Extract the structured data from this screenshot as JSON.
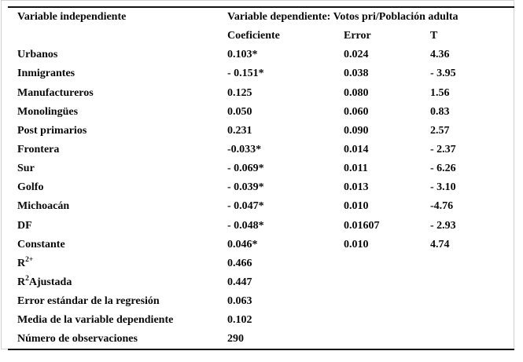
{
  "table": {
    "header": {
      "independent_label": "Variable independiente",
      "dependent_label": "Variable dependiente: Votos pri/Población adulta",
      "columns": {
        "coefficient": "Coeficiente",
        "error": "Error",
        "t": "T"
      }
    },
    "rows": [
      {
        "label": "Urbanos",
        "label_sup": "",
        "label_rest": "",
        "coef": "0.103*",
        "error": "0.024",
        "t": "4.36"
      },
      {
        "label": "Inmigrantes",
        "label_sup": "",
        "label_rest": "",
        "coef": "- 0.151*",
        "error": "0.038",
        "t": "- 3.95"
      },
      {
        "label": "Manufactureros",
        "label_sup": "",
        "label_rest": "",
        "coef": "0.125",
        "error": "0.080",
        "t": "1.56"
      },
      {
        "label": "Monolingües",
        "label_sup": "",
        "label_rest": "",
        "coef": "0.050",
        "error": "0.060",
        "t": "0.83"
      },
      {
        "label": "Post primarios",
        "label_sup": "",
        "label_rest": "",
        "coef": "0.231",
        "error": "0.090",
        "t": "2.57"
      },
      {
        "label": "Frontera",
        "label_sup": "",
        "label_rest": "",
        "coef": "-0.033*",
        "error": "0.014",
        "t": "- 2.37"
      },
      {
        "label": "Sur",
        "label_sup": "",
        "label_rest": "",
        "coef": "- 0.069*",
        "error": "0.011",
        "t": "- 6.26"
      },
      {
        "label": "Golfo",
        "label_sup": "",
        "label_rest": "",
        "coef": "- 0.039*",
        "error": "0.013",
        "t": "- 3.10"
      },
      {
        "label": "Michoacán",
        "label_sup": "",
        "label_rest": "",
        "coef": "- 0.047*",
        "error": "0.010",
        "t": "-4.76"
      },
      {
        "label": "DF",
        "label_sup": "",
        "label_rest": "",
        "coef": "- 0.048*",
        "error": "0.01607",
        "t": "- 2.93"
      },
      {
        "label": "Constante",
        "label_sup": "",
        "label_rest": "",
        "coef": "0.046*",
        "error": "0.010",
        "t": "4.74"
      },
      {
        "label": "R",
        "label_sup": "2+",
        "label_rest": "",
        "coef": "0.466",
        "error": "",
        "t": ""
      },
      {
        "label": "R",
        "label_sup": "2",
        "label_rest": "Ajustada",
        "coef": "0.447",
        "error": "",
        "t": ""
      },
      {
        "label": "Error estándar de la regresión",
        "label_sup": "",
        "label_rest": "",
        "coef": "0.063",
        "error": "",
        "t": ""
      },
      {
        "label": "Media de la variable dependiente",
        "label_sup": "",
        "label_rest": "",
        "coef": "0.102",
        "error": "",
        "t": ""
      },
      {
        "label": "Número de observaciones",
        "label_sup": "",
        "label_rest": "",
        "coef": "290",
        "error": "",
        "t": ""
      }
    ]
  }
}
